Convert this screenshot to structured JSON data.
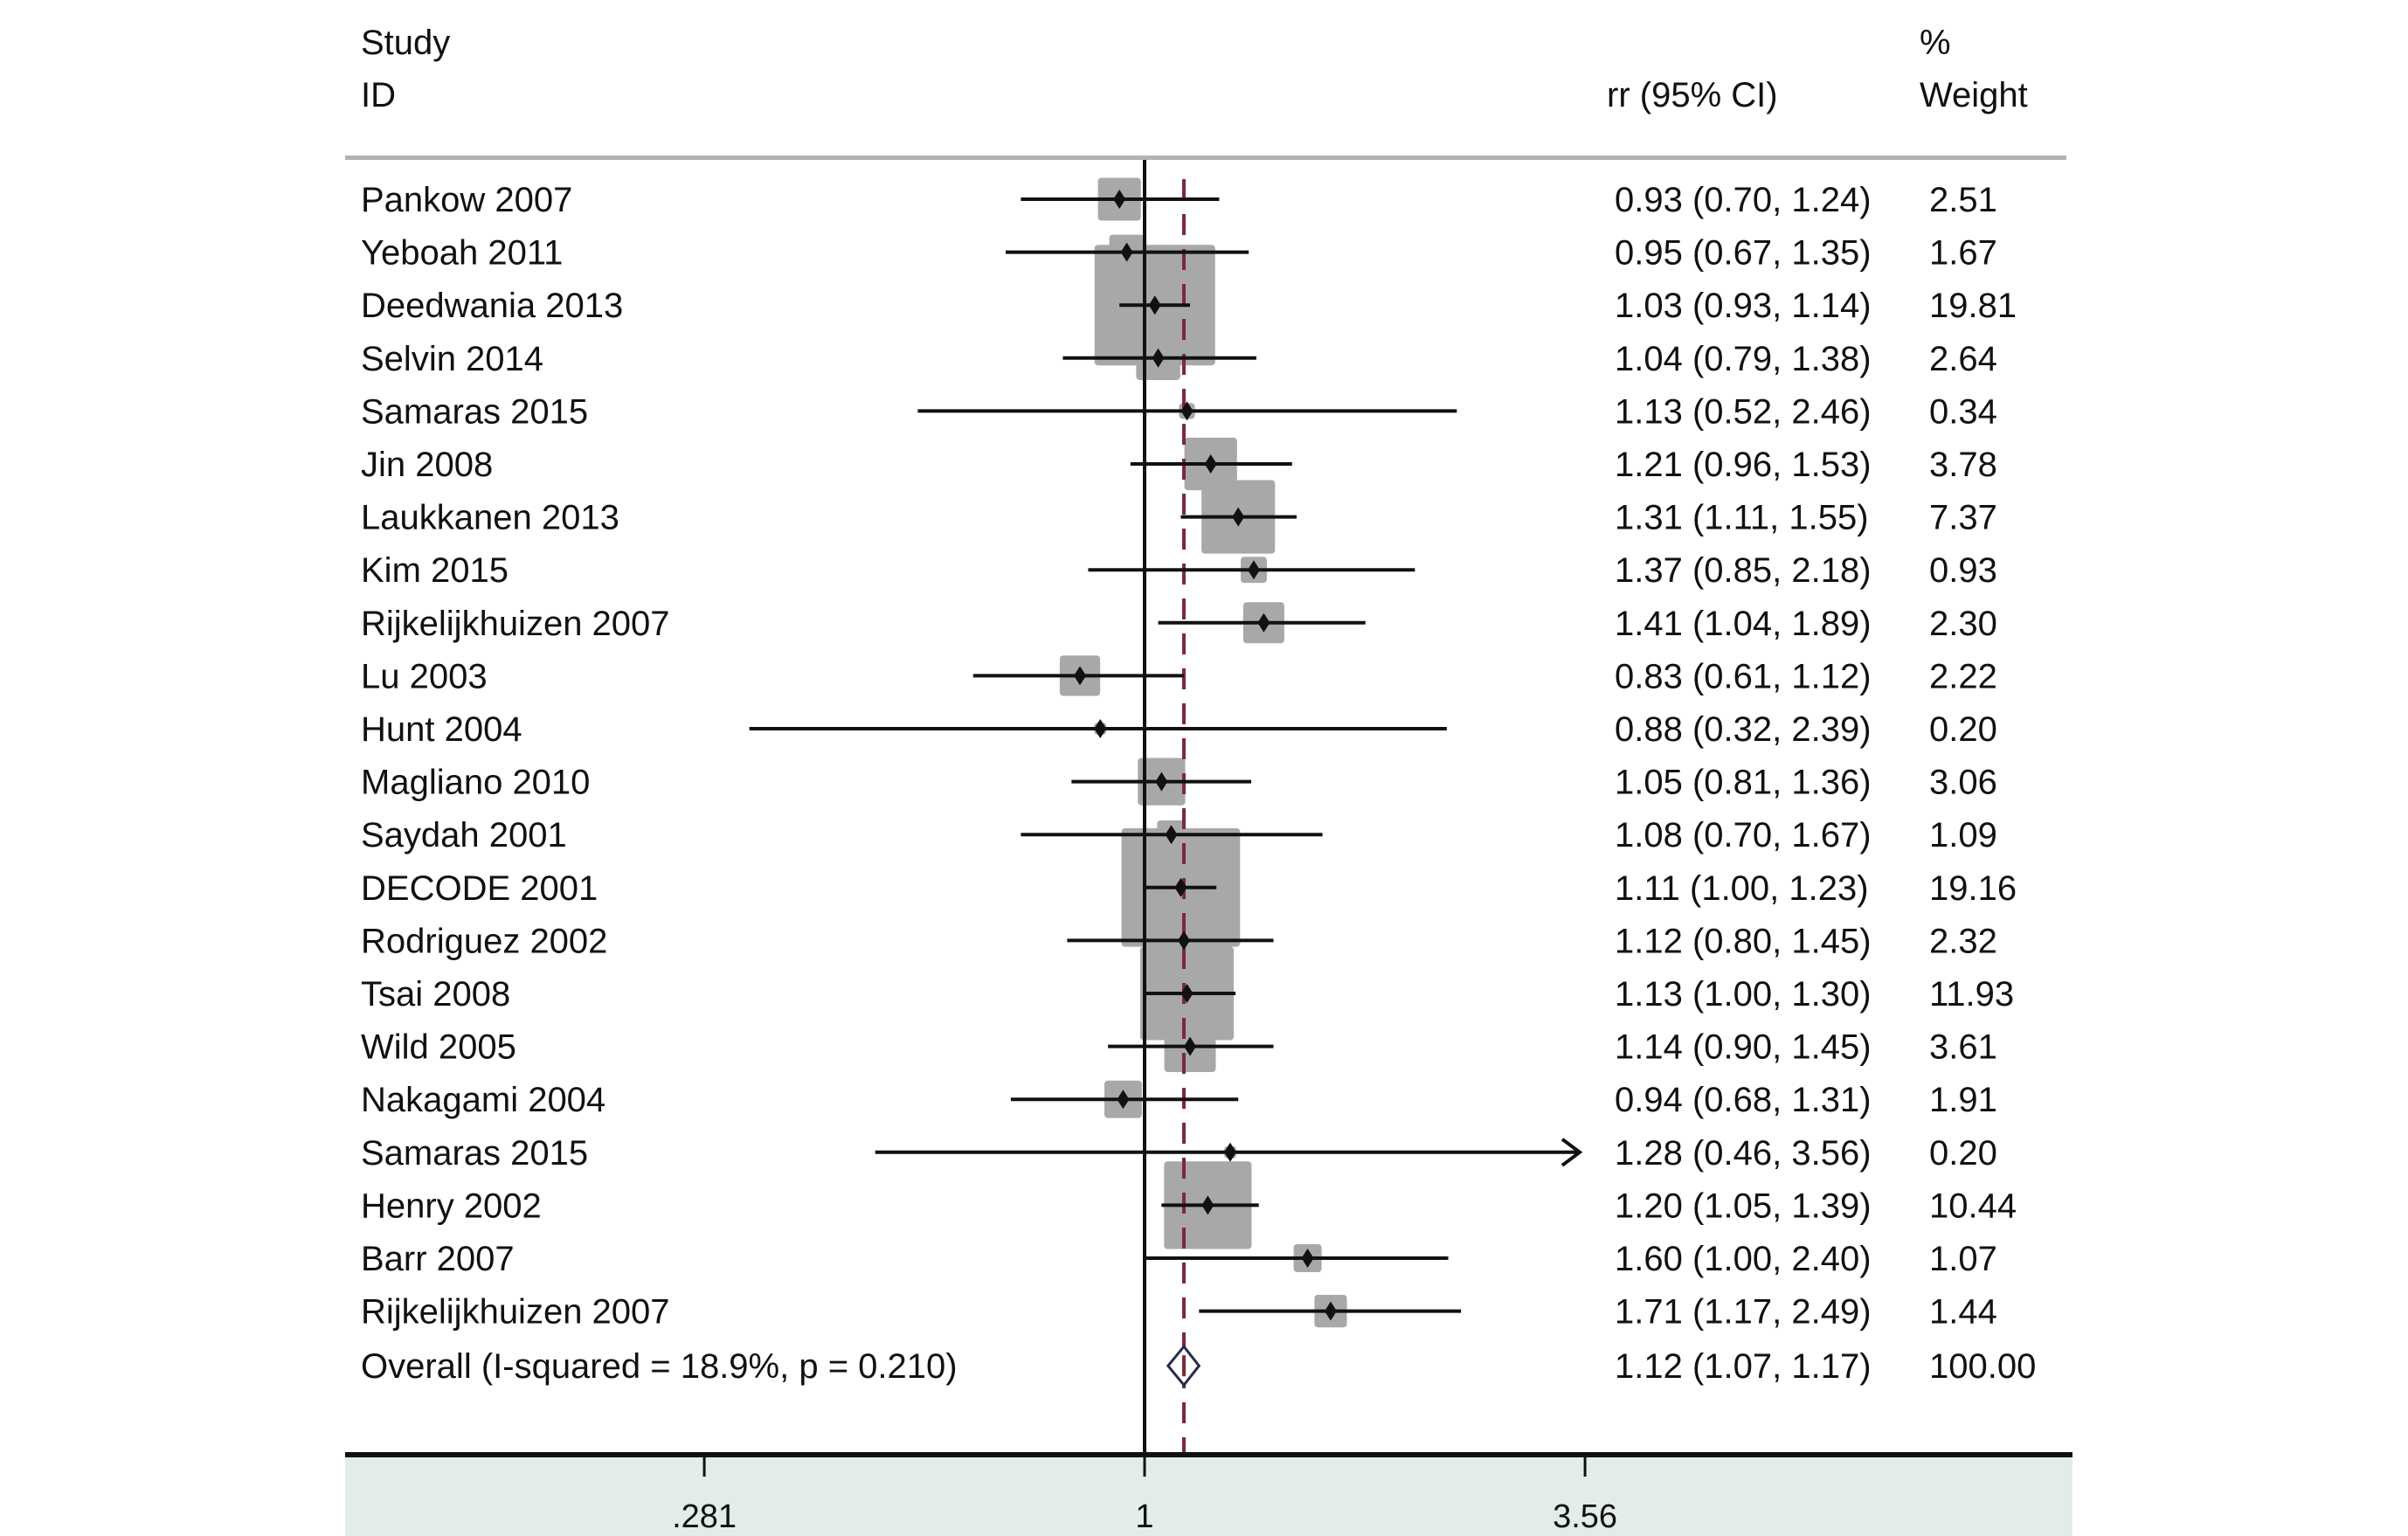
{
  "chart_data": {
    "type": "forest",
    "title": "",
    "headers": {
      "study_line1": "Study",
      "study_line2": "ID",
      "effect": "rr (95% CI)",
      "weight_line1": "%",
      "weight_line2": "Weight"
    },
    "xscale": "log",
    "xlim": [
      0.168,
      5.5
    ],
    "xticks": [
      0.281,
      1,
      3.56
    ],
    "xtick_labels": [
      ".281",
      "1",
      "3.56"
    ],
    "null_line": 1,
    "overall_line": 1.12,
    "studies": [
      {
        "id": "Pankow 2007",
        "rr": 0.93,
        "lo": 0.7,
        "hi": 1.24,
        "weight": 2.51,
        "text": "0.93 (0.70, 1.24)",
        "weight_text": "2.51"
      },
      {
        "id": "Yeboah 2011",
        "rr": 0.95,
        "lo": 0.67,
        "hi": 1.35,
        "weight": 1.67,
        "text": "0.95 (0.67, 1.35)",
        "weight_text": "1.67"
      },
      {
        "id": "Deedwania 2013",
        "rr": 1.03,
        "lo": 0.93,
        "hi": 1.14,
        "weight": 19.81,
        "text": "1.03 (0.93, 1.14)",
        "weight_text": "19.81"
      },
      {
        "id": "Selvin 2014",
        "rr": 1.04,
        "lo": 0.79,
        "hi": 1.38,
        "weight": 2.64,
        "text": "1.04 (0.79, 1.38)",
        "weight_text": "2.64"
      },
      {
        "id": "Samaras 2015",
        "rr": 1.13,
        "lo": 0.52,
        "hi": 2.46,
        "weight": 0.34,
        "text": "1.13 (0.52, 2.46)",
        "weight_text": "0.34"
      },
      {
        "id": "Jin 2008",
        "rr": 1.21,
        "lo": 0.96,
        "hi": 1.53,
        "weight": 3.78,
        "text": "1.21 (0.96, 1.53)",
        "weight_text": "3.78"
      },
      {
        "id": "Laukkanen 2013",
        "rr": 1.31,
        "lo": 1.11,
        "hi": 1.55,
        "weight": 7.37,
        "text": "1.31 (1.11, 1.55)",
        "weight_text": "7.37"
      },
      {
        "id": "Kim 2015",
        "rr": 1.37,
        "lo": 0.85,
        "hi": 2.18,
        "weight": 0.93,
        "text": "1.37 (0.85, 2.18)",
        "weight_text": "0.93"
      },
      {
        "id": "Rijkelijkhuizen 2007",
        "rr": 1.41,
        "lo": 1.04,
        "hi": 1.89,
        "weight": 2.3,
        "text": "1.41 (1.04, 1.89)",
        "weight_text": "2.30"
      },
      {
        "id": "Lu 2003",
        "rr": 0.83,
        "lo": 0.61,
        "hi": 1.12,
        "weight": 2.22,
        "text": "0.83 (0.61, 1.12)",
        "weight_text": "2.22"
      },
      {
        "id": "Hunt 2004",
        "rr": 0.88,
        "lo": 0.32,
        "hi": 2.39,
        "weight": 0.2,
        "text": "0.88 (0.32, 2.39)",
        "weight_text": "0.20"
      },
      {
        "id": "Magliano 2010",
        "rr": 1.05,
        "lo": 0.81,
        "hi": 1.36,
        "weight": 3.06,
        "text": "1.05 (0.81, 1.36)",
        "weight_text": "3.06"
      },
      {
        "id": "Saydah 2001",
        "rr": 1.08,
        "lo": 0.7,
        "hi": 1.67,
        "weight": 1.09,
        "text": "1.08 (0.70, 1.67)",
        "weight_text": "1.09"
      },
      {
        "id": "DECODE 2001",
        "rr": 1.11,
        "lo": 1.0,
        "hi": 1.23,
        "weight": 19.16,
        "text": "1.11 (1.00, 1.23)",
        "weight_text": "19.16"
      },
      {
        "id": "Rodriguez 2002",
        "rr": 1.12,
        "lo": 0.8,
        "hi": 1.45,
        "weight": 2.32,
        "text": "1.12 (0.80, 1.45)",
        "weight_text": "2.32"
      },
      {
        "id": "Tsai 2008",
        "rr": 1.13,
        "lo": 1.0,
        "hi": 1.3,
        "weight": 11.93,
        "text": "1.13 (1.00, 1.30)",
        "weight_text": "11.93"
      },
      {
        "id": "Wild 2005",
        "rr": 1.14,
        "lo": 0.9,
        "hi": 1.45,
        "weight": 3.61,
        "text": "1.14 (0.90, 1.45)",
        "weight_text": "3.61"
      },
      {
        "id": "Nakagami 2004",
        "rr": 0.94,
        "lo": 0.68,
        "hi": 1.31,
        "weight": 1.91,
        "text": "0.94 (0.68, 1.31)",
        "weight_text": "1.91"
      },
      {
        "id": "Samaras 2015",
        "rr": 1.28,
        "lo": 0.46,
        "hi": 3.56,
        "weight": 0.2,
        "text": "1.28 (0.46, 3.56)",
        "weight_text": "0.20",
        "arrow_right": true
      },
      {
        "id": "Henry 2002",
        "rr": 1.2,
        "lo": 1.05,
        "hi": 1.39,
        "weight": 10.44,
        "text": "1.20 (1.05, 1.39)",
        "weight_text": "10.44"
      },
      {
        "id": "Barr 2007",
        "rr": 1.6,
        "lo": 1.0,
        "hi": 2.4,
        "weight": 1.07,
        "text": "1.60 (1.00, 2.40)",
        "weight_text": "1.07"
      },
      {
        "id": "Rijkelijkhuizen 2007",
        "rr": 1.71,
        "lo": 1.17,
        "hi": 2.49,
        "weight": 1.44,
        "text": "1.71 (1.17, 2.49)",
        "weight_text": "1.44"
      }
    ],
    "overall": {
      "id": "Overall  (I-squared = 18.9%, p = 0.210)",
      "rr": 1.12,
      "lo": 1.07,
      "hi": 1.17,
      "text": "1.12 (1.07, 1.17)",
      "weight_text": "100.00"
    },
    "colors": {
      "box": "#a8a8a8",
      "ci_line": "#111111",
      "null_line": "#111111",
      "overall_line": "#7a2a3a",
      "diamond": "#2a2a4a",
      "header_rule": "#b3b3b3",
      "axis_band": "#e2ecea"
    }
  }
}
